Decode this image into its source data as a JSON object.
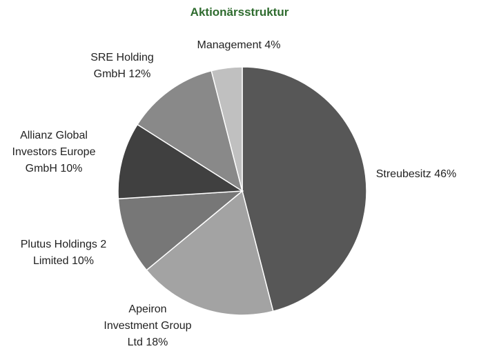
{
  "chart_data": {
    "type": "pie",
    "title": "Aktionärsstruktur",
    "categories": [
      "Streubesitz",
      "Apeiron Investment Group Ltd",
      "Plutus Holdings 2 Limited",
      "Allianz Global Investors Europe GmbH",
      "SRE Holding GmbH",
      "Management"
    ],
    "values": [
      46,
      18,
      10,
      10,
      12,
      4
    ],
    "value_labels": [
      "46%",
      "18%",
      "10%",
      "10%",
      "12%",
      "4%"
    ],
    "colors": [
      "#575757",
      "#a3a3a3",
      "#777777",
      "#404040",
      "#898989",
      "#c0c0c0"
    ]
  }
}
